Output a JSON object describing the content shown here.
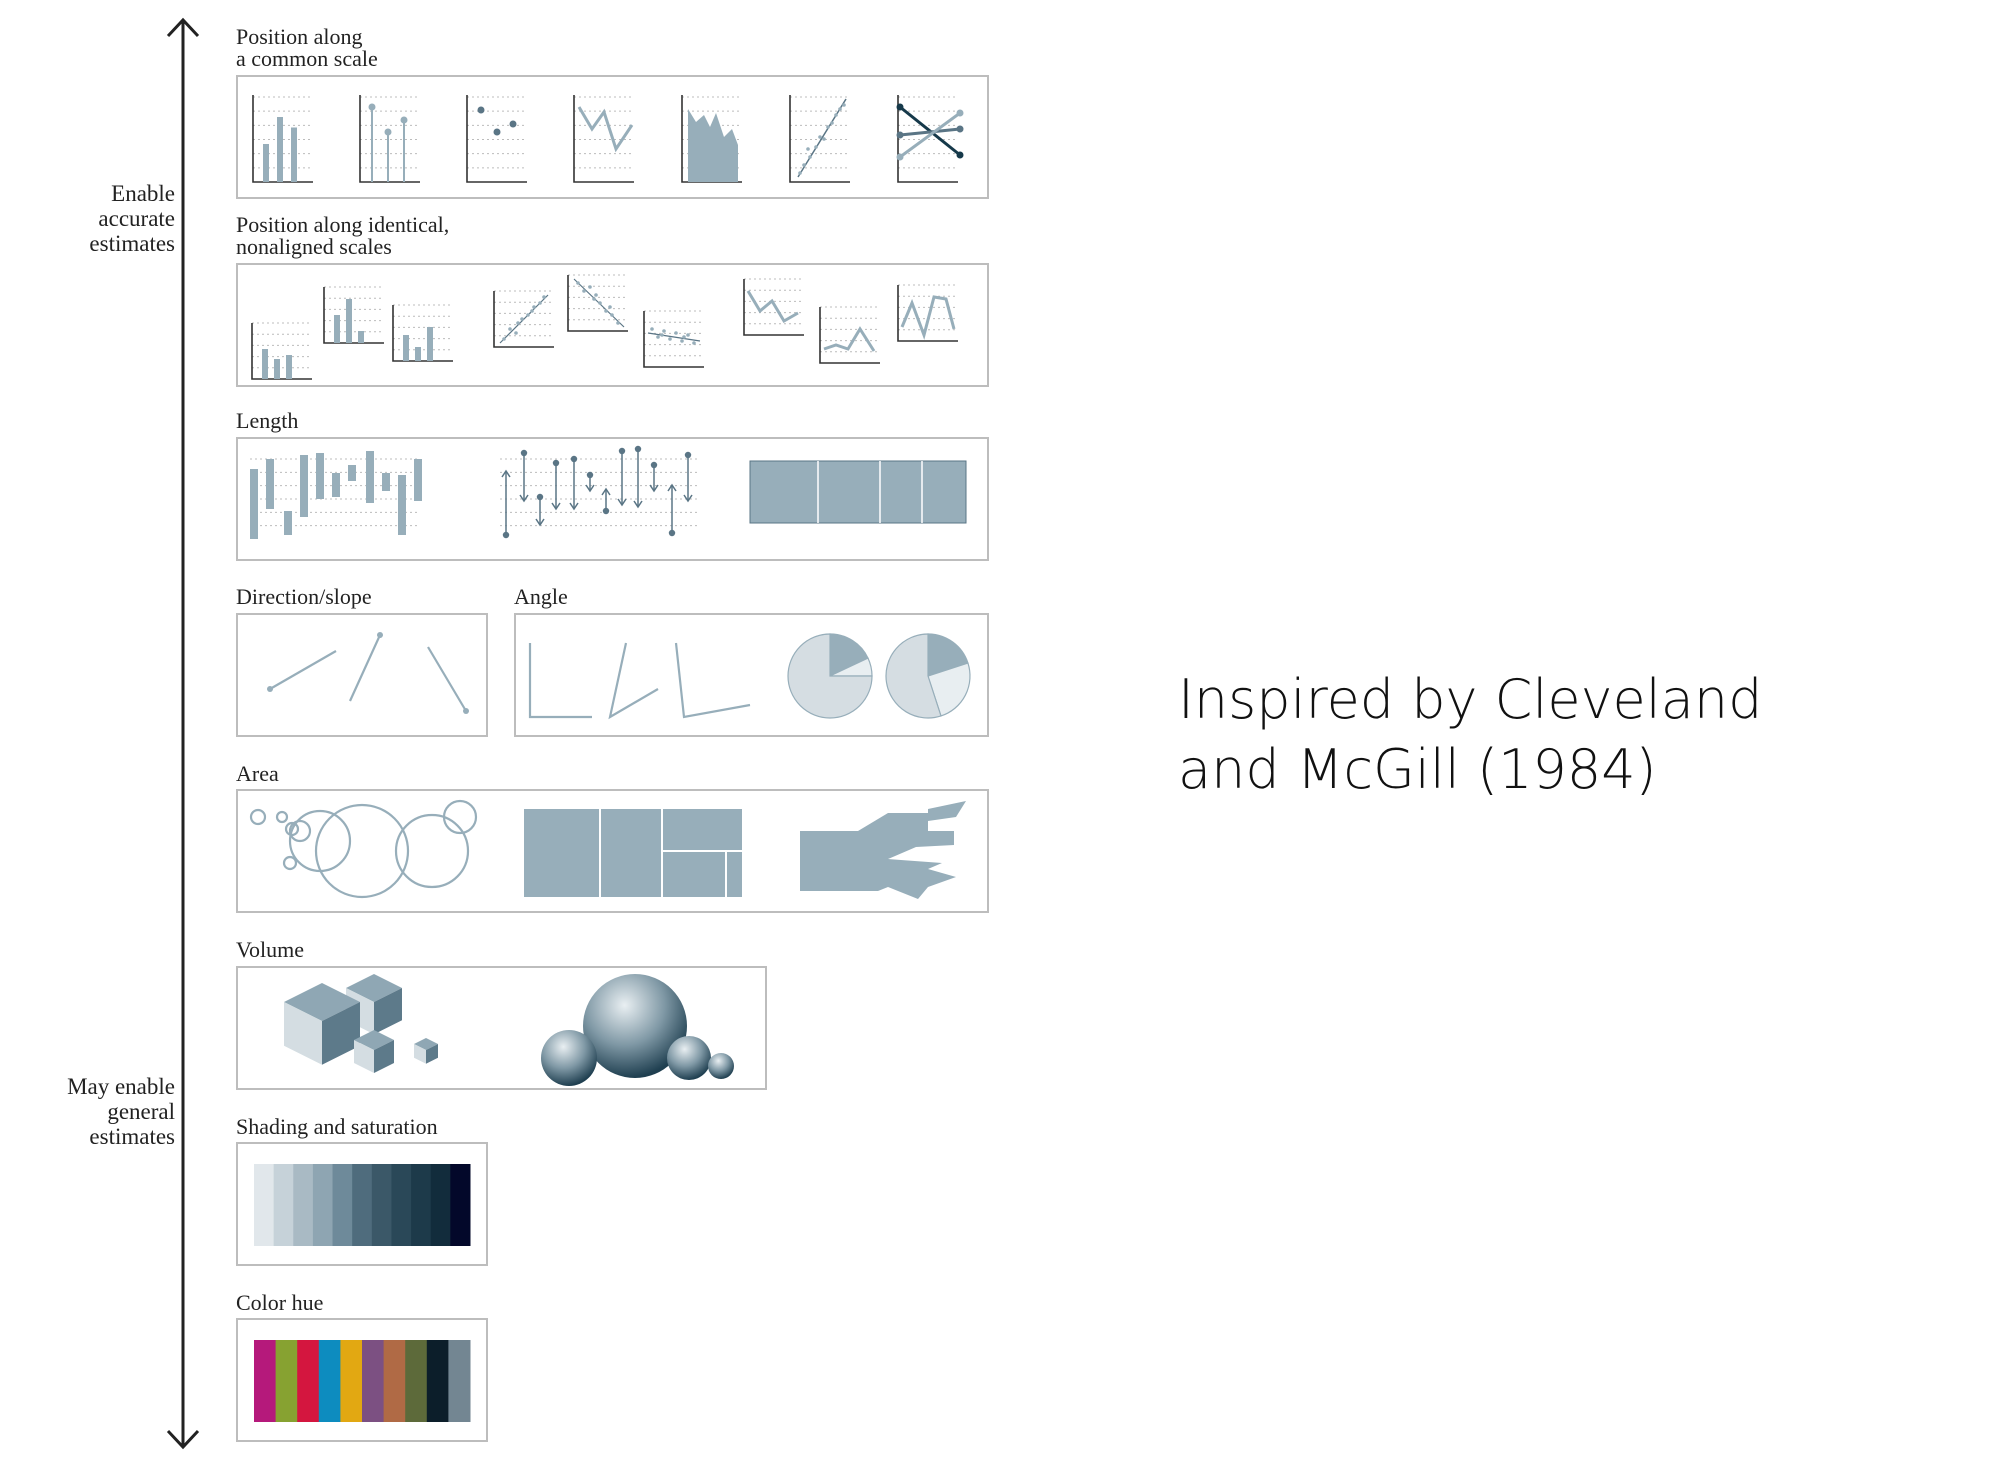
{
  "axis": {
    "top_label": [
      "Enable",
      "accurate",
      "estimates"
    ],
    "bottom_label": [
      "May enable",
      "general",
      "estimates"
    ],
    "icon": "double-headed-vertical-arrow"
  },
  "panels": {
    "common_scale": {
      "label_line1": "Position along",
      "label_line2": "a common scale"
    },
    "nonaligned": {
      "label_line1": "Position along identical,",
      "label_line2": "nonaligned scales"
    },
    "length": {
      "label": "Length"
    },
    "direction": {
      "label": "Direction/slope"
    },
    "angle": {
      "label": "Angle"
    },
    "area": {
      "label": "Area"
    },
    "volume": {
      "label": "Volume"
    },
    "shading": {
      "label": "Shading and saturation",
      "swatches": [
        "#e1e7eb",
        "#c6d2d9",
        "#a9bac4",
        "#8ea5b2",
        "#6e8a9a",
        "#4f6c7d",
        "#3b5868",
        "#2a4858",
        "#1d3a4a",
        "#122c3c",
        "#03082a"
      ]
    },
    "hue": {
      "label": "Color hue",
      "swatches": [
        "#b5197b",
        "#87a231",
        "#d4163f",
        "#0d8cbf",
        "#e2a812",
        "#7c5082",
        "#b06a45",
        "#5d6a3a",
        "#0c1e2a",
        "#738692"
      ]
    }
  },
  "colors": {
    "mark": "#97aeba",
    "mark_dark": "#5a7585",
    "mark_darkest": "#16394a",
    "axis": "#222222",
    "frame": "#bdbdbd",
    "grid": "#bcbcbc",
    "pie_light": "#d5dde2",
    "pie_lighter": "#e8eef1"
  },
  "citation": {
    "line1": "Inspired by Cleveland",
    "line2": "and McGill (1984)"
  }
}
